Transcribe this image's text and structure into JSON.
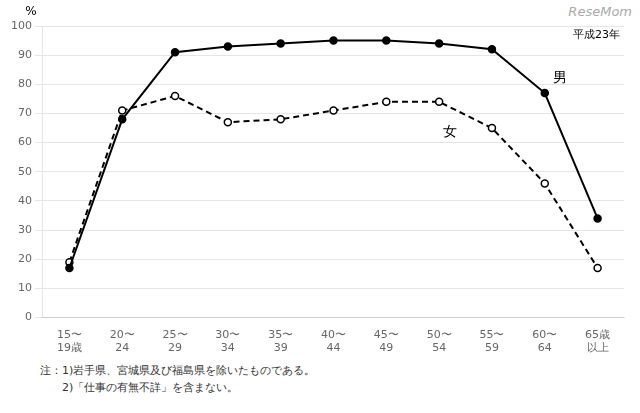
{
  "chart_data": {
    "type": "line",
    "categories": [
      [
        "15〜",
        "19歳"
      ],
      [
        "20〜",
        "24"
      ],
      [
        "25〜",
        "29"
      ],
      [
        "30〜",
        "34"
      ],
      [
        "35〜",
        "39"
      ],
      [
        "40〜",
        "44"
      ],
      [
        "45〜",
        "49"
      ],
      [
        "50〜",
        "54"
      ],
      [
        "55〜",
        "59"
      ],
      [
        "60〜",
        "64"
      ],
      [
        "65歳",
        "以上"
      ]
    ],
    "series": [
      {
        "name": "男",
        "color": "#000000",
        "line_style": "solid",
        "marker": "filled circle",
        "values": [
          17,
          68,
          91,
          93,
          94,
          95,
          95,
          94,
          92,
          77,
          34
        ]
      },
      {
        "name": "女",
        "color": "#000000",
        "line_style": "dashed",
        "marker": "open circle",
        "values": [
          19,
          71,
          76,
          67,
          68,
          71,
          74,
          74,
          65,
          46,
          17
        ]
      }
    ],
    "ylabel": "%",
    "ylim": [
      0,
      100
    ],
    "yticks": [
      0,
      10,
      20,
      30,
      40,
      50,
      60,
      70,
      80,
      90,
      100
    ],
    "grid": true,
    "annotations": [
      "平成23年",
      "ReseMom"
    ],
    "notes": [
      "注：1)岩手県、宮城県及び福島県を除いたものである。",
      "　　2)「仕事の有無不詳」を含まない。"
    ]
  }
}
